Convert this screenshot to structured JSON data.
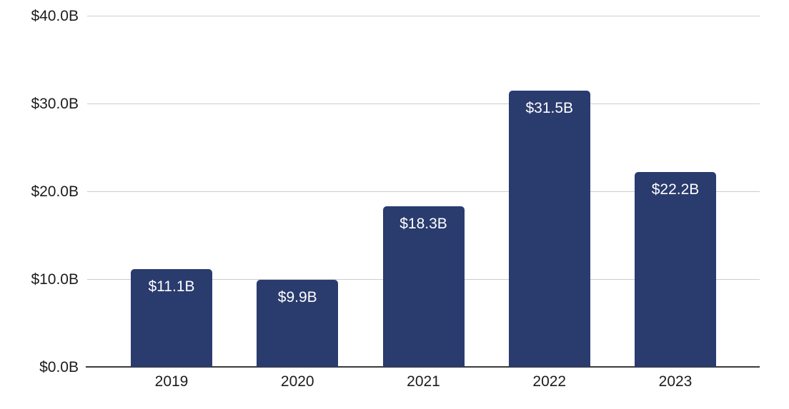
{
  "chart_data": {
    "type": "bar",
    "categories": [
      "2019",
      "2020",
      "2021",
      "2022",
      "2023"
    ],
    "values": [
      11.1,
      9.9,
      18.3,
      31.5,
      22.2
    ],
    "bar_labels": [
      "$11.1B",
      "$9.9B",
      "$18.3B",
      "$31.5B",
      "$22.2B"
    ],
    "yticks": [
      0,
      10,
      20,
      30,
      40
    ],
    "ytick_labels": [
      "$0.0B",
      "$10.0B",
      "$20.0B",
      "$30.0B",
      "$40.0B"
    ],
    "ylim": [
      0,
      40
    ],
    "grid": true,
    "legend_position": "none"
  },
  "colors": {
    "bar_fill": "#2A3B6E",
    "bar_label_text": "#ffffff",
    "gridline": "#cccccc",
    "axis_line": "#3b3b3b",
    "tick_text": "#1c1c1c",
    "background": "#ffffff"
  }
}
